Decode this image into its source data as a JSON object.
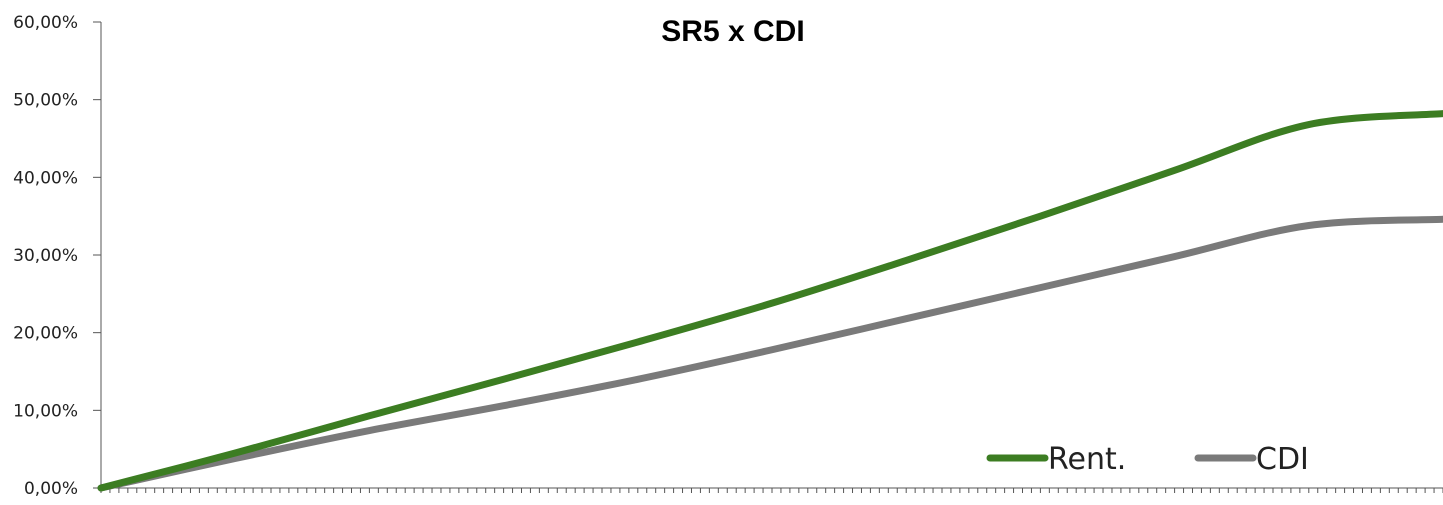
{
  "chart_data": {
    "type": "line",
    "title": "SR5 x CDI",
    "xlabel": "",
    "ylabel": "",
    "ylim": [
      0,
      60
    ],
    "y_ticks": [
      {
        "value": 0,
        "label": "0,00%"
      },
      {
        "value": 10,
        "label": "10,00%"
      },
      {
        "value": 20,
        "label": "20,00%"
      },
      {
        "value": 30,
        "label": "30,00%"
      },
      {
        "value": 40,
        "label": "40,00%"
      },
      {
        "value": 50,
        "label": "50,00%"
      },
      {
        "value": 60,
        "label": "60,00%"
      }
    ],
    "x_tick_count": 150,
    "legend_position": "bottom-right",
    "x": [
      0,
      0.1,
      0.2,
      0.3,
      0.4,
      0.5,
      0.6,
      0.7,
      0.8,
      0.9,
      1.0
    ],
    "series": [
      {
        "name": "Rent.",
        "color": "#3c7d22",
        "values": [
          0,
          4.5,
          9.3,
          14.0,
          18.8,
          23.8,
          29.3,
          35.0,
          40.9,
          46.8,
          48.2
        ]
      },
      {
        "name": "CDI",
        "color": "#7a7a7a",
        "values": [
          0,
          3.8,
          7.4,
          10.6,
          14.0,
          17.8,
          21.8,
          25.8,
          29.8,
          33.8,
          34.6
        ]
      }
    ],
    "grid": false
  }
}
